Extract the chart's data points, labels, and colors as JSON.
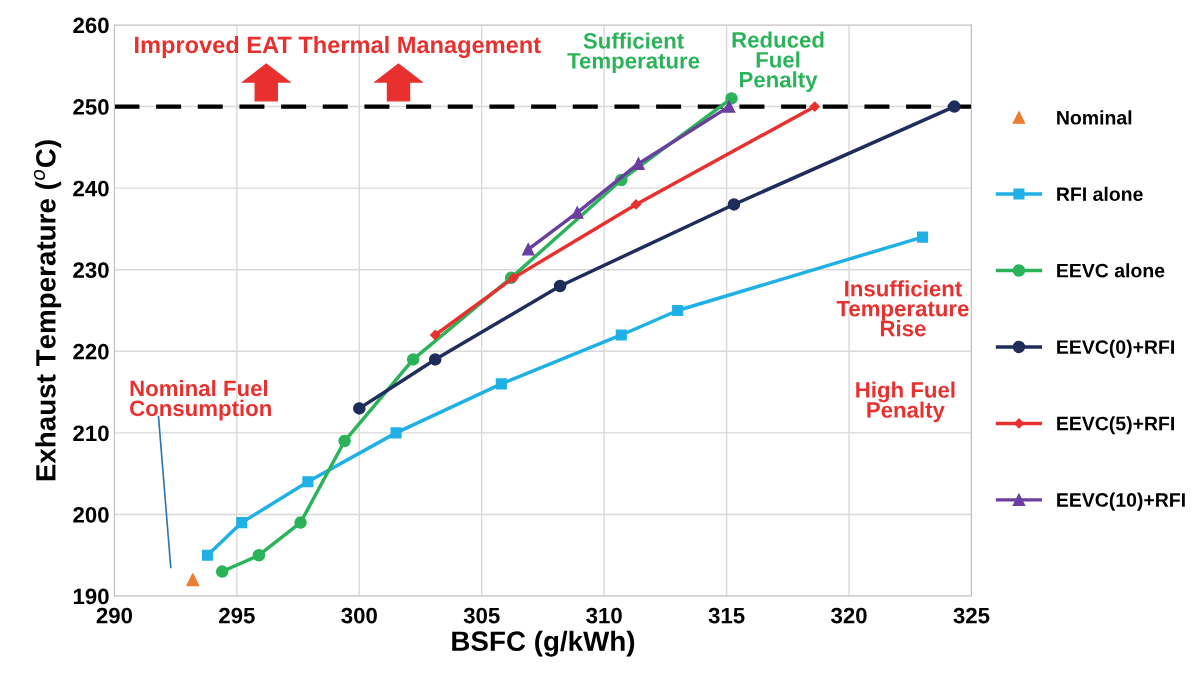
{
  "chart_data": {
    "type": "line",
    "xlabel": "BSFC (g/kWh)",
    "ylabel": "Exhaust Temperature ($^{o}$C)",
    "xlim": [
      290,
      325
    ],
    "xticks": [
      290,
      295,
      300,
      305,
      310,
      315,
      320,
      325
    ],
    "ylim": [
      190,
      260
    ],
    "yticks": [
      190,
      200,
      210,
      220,
      230,
      240,
      250,
      260
    ],
    "grid": true,
    "legend": "right",
    "series": [
      {
        "name": "Nominal",
        "type": "scatter",
        "marker": "triangle",
        "color": "#ed7d31",
        "x": [
          293.2
        ],
        "values": [
          192
        ]
      },
      {
        "name": "RFI alone",
        "marker": "square",
        "color": "#1fb0e6",
        "x": [
          293.8,
          295.2,
          297.9,
          301.5,
          305.8,
          310.7,
          313.0,
          323.0
        ],
        "values": [
          195,
          199,
          204,
          210,
          216,
          222,
          225,
          234
        ]
      },
      {
        "name": "EEVC alone",
        "marker": "circle",
        "color": "#2bb35a",
        "x": [
          294.4,
          295.9,
          297.6,
          299.4,
          302.2,
          306.2,
          310.7,
          315.2
        ],
        "values": [
          193,
          195,
          199,
          209,
          219,
          229,
          241,
          251
        ]
      },
      {
        "name": "EEVC(0)+RFI",
        "marker": "circle",
        "color": "#1f2d5c",
        "x": [
          300.0,
          303.1,
          308.2,
          315.3,
          324.3
        ],
        "values": [
          213,
          219,
          228,
          238,
          250
        ]
      },
      {
        "name": "EEVC(5)+RFI",
        "marker": "diamond",
        "color": "#e8312f",
        "x": [
          303.1,
          306.3,
          311.3,
          318.6
        ],
        "values": [
          222,
          229,
          238,
          250
        ]
      },
      {
        "name": "EEVC(10)+RFI",
        "marker": "triangle",
        "color": "#6a3fa0",
        "x": [
          306.9,
          308.9,
          311.4,
          315.1
        ],
        "values": [
          232.5,
          237,
          243,
          250
        ]
      }
    ],
    "ref_lines": [
      {
        "axis": "y",
        "value": 250,
        "color": "#000000",
        "line_style": "dashed"
      }
    ],
    "annotations": [
      "Improved EAT Thermal Management",
      "Sufficient\nTemperature",
      "Reduced\nFuel\nPenalty",
      "Insufficient\nTemperature\nRise",
      "High Fuel\nPenalty",
      "Nominal Fuel\nConsumption"
    ]
  }
}
